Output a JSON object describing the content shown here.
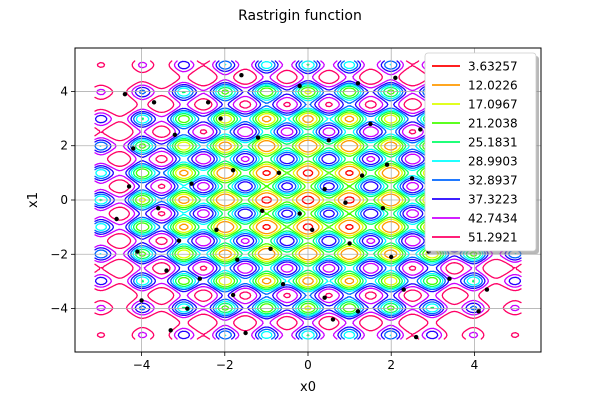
{
  "chart_data": {
    "type": "contour",
    "title": "Rastrigin function",
    "xlabel": "x0",
    "ylabel": "x1",
    "xlim": [
      -5.6,
      5.6
    ],
    "ylim": [
      -5.6,
      5.6
    ],
    "domain": [
      -5.12,
      5.12
    ],
    "grid": true,
    "legend_position": "upper-right",
    "x_ticks": [
      -4,
      -2,
      0,
      2,
      4
    ],
    "y_ticks": [
      -4,
      -2,
      0,
      2,
      4
    ],
    "x_tick_labels": [
      "−4",
      "−2",
      "0",
      "2",
      "4"
    ],
    "y_tick_labels": [
      "−4",
      "−2",
      "0",
      "2",
      "4"
    ],
    "levels": [
      {
        "value": 3.63257,
        "label": "3.63257",
        "color": "#ff0000"
      },
      {
        "value": 12.0226,
        "label": "12.0226",
        "color": "#ff9900"
      },
      {
        "value": 17.0967,
        "label": "17.0967",
        "color": "#ddff00"
      },
      {
        "value": 21.2038,
        "label": "21.2038",
        "color": "#44ff00"
      },
      {
        "value": 25.1831,
        "label": "25.1831",
        "color": "#00ff66"
      },
      {
        "value": 28.9903,
        "label": "28.9903",
        "color": "#00ffff"
      },
      {
        "value": 32.8937,
        "label": "32.8937",
        "color": "#0066ff"
      },
      {
        "value": 37.3223,
        "label": "37.3223",
        "color": "#2200ff"
      },
      {
        "value": 42.7434,
        "label": "42.7434",
        "color": "#cc00ff"
      },
      {
        "value": 51.2921,
        "label": "51.2921",
        "color": "#ff0066"
      }
    ],
    "scatter_points": [
      [
        -4.4,
        3.9
      ],
      [
        -4.2,
        1.9
      ],
      [
        -3.7,
        3.6
      ],
      [
        -2.4,
        3.6
      ],
      [
        -1.6,
        4.6
      ],
      [
        -0.2,
        4.2
      ],
      [
        1.2,
        4.3
      ],
      [
        2.1,
        4.5
      ],
      [
        2.7,
        2.6
      ],
      [
        1.5,
        2.8
      ],
      [
        0.5,
        2.2
      ],
      [
        -1.2,
        2.3
      ],
      [
        -2.1,
        3.0
      ],
      [
        -3.2,
        2.4
      ],
      [
        -4.3,
        0.5
      ],
      [
        -3.6,
        -0.3
      ],
      [
        -2.8,
        0.6
      ],
      [
        -1.8,
        1.1
      ],
      [
        -0.7,
        1.0
      ],
      [
        0.4,
        0.4
      ],
      [
        1.3,
        0.9
      ],
      [
        1.9,
        1.3
      ],
      [
        2.5,
        0.8
      ],
      [
        2.9,
        -0.4
      ],
      [
        1.8,
        -0.3
      ],
      [
        0.9,
        -0.1
      ],
      [
        -0.2,
        -0.5
      ],
      [
        -1.1,
        -0.4
      ],
      [
        -2.2,
        -1.1
      ],
      [
        -3.1,
        -1.5
      ],
      [
        -4.1,
        -1.9
      ],
      [
        -4.6,
        -0.7
      ],
      [
        -3.4,
        -2.6
      ],
      [
        -2.6,
        -2.9
      ],
      [
        -1.7,
        -2.2
      ],
      [
        -0.9,
        -1.8
      ],
      [
        0.1,
        -1.1
      ],
      [
        1.0,
        -1.6
      ],
      [
        2.0,
        -2.1
      ],
      [
        2.9,
        -1.9
      ],
      [
        -4.0,
        -3.7
      ],
      [
        -2.9,
        -4.0
      ],
      [
        -1.8,
        -3.5
      ],
      [
        -0.6,
        -3.1
      ],
      [
        0.4,
        -3.6
      ],
      [
        1.2,
        -4.1
      ],
      [
        2.3,
        -3.3
      ],
      [
        3.4,
        -2.9
      ],
      [
        -3.3,
        -4.8
      ],
      [
        -1.5,
        -4.9
      ],
      [
        0.6,
        -4.4
      ],
      [
        2.6,
        -5.05
      ],
      [
        4.1,
        -4.1
      ],
      [
        4.3,
        -3.3
      ],
      [
        3.9,
        1.7
      ],
      [
        3.6,
        -1.2
      ]
    ]
  }
}
